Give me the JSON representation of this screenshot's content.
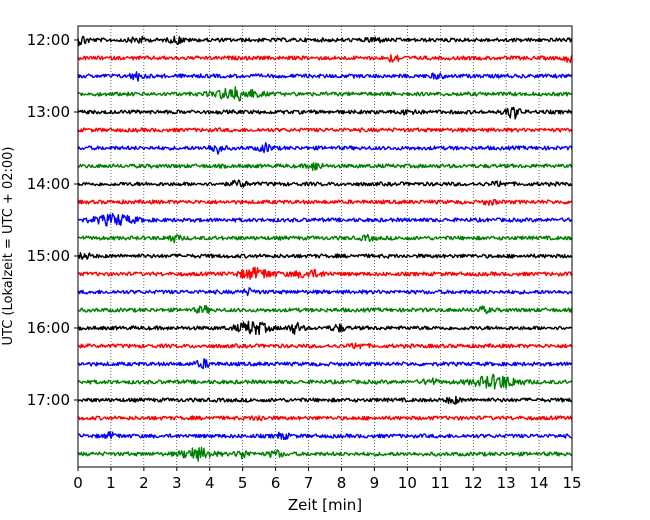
{
  "chart_data": {
    "type": "line",
    "title": "",
    "xlabel": "Zeit  [min]",
    "ylabel": "UTC (Lokalzeit = UTC + 02:00)",
    "xlim": [
      0,
      15
    ],
    "x_ticks": [
      0,
      1,
      2,
      3,
      4,
      5,
      6,
      7,
      8,
      9,
      10,
      11,
      12,
      13,
      14,
      15
    ],
    "x_grid": "dotted vertical lines at each minute",
    "row_interval_min": 15,
    "y_ticks": [
      "12:00",
      "13:00",
      "14:00",
      "15:00",
      "16:00",
      "17:00"
    ],
    "y_tick_row_index": [
      0,
      4,
      8,
      12,
      16,
      20
    ],
    "color_cycle": [
      "#000000",
      "#ff0000",
      "#0000ff",
      "#008000"
    ],
    "series": [
      {
        "start": "12:00",
        "color": "#000000",
        "events": [
          {
            "t": 0.1,
            "amp": 0.7
          },
          {
            "t": 1.8,
            "amp": 0.5
          },
          {
            "t": 3.0,
            "amp": 0.5
          },
          {
            "t": 9.0,
            "amp": 0.4
          }
        ]
      },
      {
        "start": "12:15",
        "color": "#ff0000",
        "events": [
          {
            "t": 9.6,
            "amp": 0.6
          },
          {
            "t": 15.0,
            "amp": 0.7
          }
        ]
      },
      {
        "start": "12:30",
        "color": "#0000ff",
        "events": [
          {
            "t": 1.8,
            "amp": 0.6
          },
          {
            "t": 10.9,
            "amp": 0.3
          }
        ]
      },
      {
        "start": "12:45",
        "color": "#008000",
        "events": [
          {
            "t": 4.8,
            "amp": 1.0,
            "dur": 1.2
          }
        ]
      },
      {
        "start": "13:00",
        "color": "#000000",
        "events": [
          {
            "t": 10.1,
            "amp": 0.5
          },
          {
            "t": 13.2,
            "amp": 1.0
          }
        ]
      },
      {
        "start": "13:15",
        "color": "#ff0000",
        "events": []
      },
      {
        "start": "13:30",
        "color": "#0000ff",
        "events": [
          {
            "t": 4.2,
            "amp": 0.8
          },
          {
            "t": 5.7,
            "amp": 0.6
          }
        ]
      },
      {
        "start": "13:45",
        "color": "#008000",
        "events": [
          {
            "t": 7.2,
            "amp": 0.6
          }
        ]
      },
      {
        "start": "14:00",
        "color": "#000000",
        "events": [
          {
            "t": 4.9,
            "amp": 0.5
          },
          {
            "t": 12.8,
            "amp": 0.3
          }
        ]
      },
      {
        "start": "14:15",
        "color": "#ff0000",
        "events": [
          {
            "t": 12.5,
            "amp": 0.3
          }
        ]
      },
      {
        "start": "14:30",
        "color": "#0000ff",
        "events": [
          {
            "t": 1.1,
            "amp": 0.8,
            "dur": 1.2
          }
        ]
      },
      {
        "start": "14:45",
        "color": "#008000",
        "events": [
          {
            "t": 2.9,
            "amp": 0.5
          },
          {
            "t": 8.8,
            "amp": 0.3
          }
        ]
      },
      {
        "start": "15:00",
        "color": "#000000",
        "events": [
          {
            "t": 0.2,
            "amp": 0.4
          }
        ]
      },
      {
        "start": "15:15",
        "color": "#ff0000",
        "events": [
          {
            "t": 5.4,
            "amp": 0.8,
            "dur": 1.0
          },
          {
            "t": 7.0,
            "amp": 0.5,
            "dur": 1.0
          }
        ]
      },
      {
        "start": "15:30",
        "color": "#0000ff",
        "events": [
          {
            "t": 5.2,
            "amp": 0.4
          }
        ]
      },
      {
        "start": "15:45",
        "color": "#008000",
        "events": [
          {
            "t": 3.8,
            "amp": 0.5
          },
          {
            "t": 12.3,
            "amp": 0.4
          }
        ]
      },
      {
        "start": "16:00",
        "color": "#000000",
        "events": [
          {
            "t": 5.3,
            "amp": 1.0,
            "dur": 0.9
          },
          {
            "t": 6.6,
            "amp": 0.8
          },
          {
            "t": 7.9,
            "amp": 0.5
          }
        ]
      },
      {
        "start": "16:15",
        "color": "#ff0000",
        "events": [
          {
            "t": 8.5,
            "amp": 0.4
          }
        ]
      },
      {
        "start": "16:30",
        "color": "#0000ff",
        "events": [
          {
            "t": 3.8,
            "amp": 0.6
          }
        ]
      },
      {
        "start": "16:45",
        "color": "#008000",
        "events": [
          {
            "t": 10.7,
            "amp": 0.5
          },
          {
            "t": 12.7,
            "amp": 1.0,
            "dur": 1.3
          }
        ]
      },
      {
        "start": "17:00",
        "color": "#000000",
        "events": [
          {
            "t": 11.4,
            "amp": 0.5
          }
        ]
      },
      {
        "start": "17:15",
        "color": "#ff0000",
        "events": [
          {
            "t": 5.5,
            "amp": 0.3
          }
        ]
      },
      {
        "start": "17:30",
        "color": "#0000ff",
        "events": [
          {
            "t": 1.0,
            "amp": 0.4
          },
          {
            "t": 6.2,
            "amp": 0.4
          }
        ]
      },
      {
        "start": "17:45",
        "color": "#008000",
        "events": [
          {
            "t": 3.6,
            "amp": 0.9,
            "dur": 0.9
          },
          {
            "t": 5.0,
            "amp": 0.6
          },
          {
            "t": 6.0,
            "amp": 0.5
          }
        ]
      }
    ]
  }
}
